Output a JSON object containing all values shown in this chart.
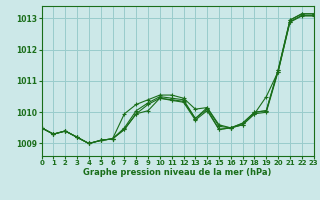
{
  "title": "Graphe pression niveau de la mer (hPa)",
  "background_color": "#cce8e8",
  "grid_color": "#99cccc",
  "line_color": "#1a6e1a",
  "xlim": [
    0,
    23
  ],
  "ylim": [
    1008.6,
    1013.4
  ],
  "yticks": [
    1009,
    1010,
    1011,
    1012,
    1013
  ],
  "xticks": [
    0,
    1,
    2,
    3,
    4,
    5,
    6,
    7,
    8,
    9,
    10,
    11,
    12,
    13,
    14,
    15,
    16,
    17,
    18,
    19,
    20,
    21,
    22,
    23
  ],
  "lines": [
    [
      1009.5,
      1009.3,
      1009.4,
      1009.2,
      1009.0,
      1009.1,
      1009.15,
      1009.5,
      1010.05,
      1010.3,
      1010.5,
      1010.45,
      1010.4,
      1009.8,
      1010.15,
      1009.55,
      1009.5,
      1009.65,
      1010.0,
      1010.05,
      1011.35,
      1012.95,
      1013.15,
      1013.15
    ],
    [
      1009.5,
      1009.3,
      1009.4,
      1009.2,
      1009.0,
      1009.1,
      1009.15,
      1009.95,
      1010.25,
      1010.4,
      1010.55,
      1010.55,
      1010.45,
      1010.1,
      1010.15,
      1009.6,
      1009.5,
      1009.65,
      1010.0,
      1010.05,
      1011.35,
      1012.95,
      1013.15,
      1013.15
    ],
    [
      1009.5,
      1009.3,
      1009.4,
      1009.2,
      1009.0,
      1009.1,
      1009.15,
      1009.45,
      1009.95,
      1010.05,
      1010.45,
      1010.4,
      1010.35,
      1009.8,
      1010.1,
      1009.45,
      1009.5,
      1009.6,
      1009.95,
      1010.5,
      1011.3,
      1012.9,
      1013.1,
      1013.1
    ],
    [
      1009.5,
      1009.3,
      1009.4,
      1009.2,
      1009.0,
      1009.1,
      1009.15,
      1009.45,
      1009.95,
      1010.25,
      1010.45,
      1010.38,
      1010.32,
      1009.75,
      1010.05,
      1009.45,
      1009.5,
      1009.6,
      1009.95,
      1010.0,
      1011.3,
      1012.88,
      1013.08,
      1013.08
    ]
  ]
}
